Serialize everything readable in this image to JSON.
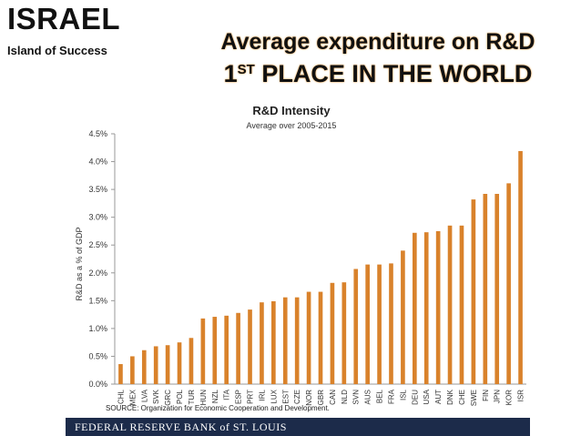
{
  "brand": {
    "title": "ISRAEL",
    "subtitle": "Island of Success"
  },
  "headline": {
    "line1": "Average expenditure on R&D",
    "line2_prefix": "1",
    "line2_sup": "ST",
    "line2_rest": " PLACE IN THE WORLD"
  },
  "chart_data": {
    "type": "bar",
    "title": "R&D Intensity",
    "subtitle": "Average over 2005-2015",
    "ylabel": "R&D as a % of GDP",
    "xlabel": "",
    "ylim": [
      0,
      4.5
    ],
    "yticks": [
      0,
      0.5,
      1.0,
      1.5,
      2.0,
      2.5,
      3.0,
      3.5,
      4.0,
      4.5
    ],
    "ytick_labels": [
      "0.0%",
      "0.5%",
      "1.0%",
      "1.5%",
      "2.0%",
      "2.5%",
      "3.0%",
      "3.5%",
      "4.0%",
      "4.5%"
    ],
    "grid": false,
    "bar_color": "#d9822b",
    "categories": [
      "CHL",
      "MEX",
      "LVA",
      "SVK",
      "GRC",
      "POL",
      "TUR",
      "HUN",
      "NZL",
      "ITA",
      "ESP",
      "PRT",
      "IRL",
      "LUX",
      "EST",
      "CZE",
      "NOR",
      "GBR",
      "CAN",
      "NLD",
      "SVN",
      "AUS",
      "BEL",
      "FRA",
      "ISL",
      "DEU",
      "USA",
      "AUT",
      "DNK",
      "CHE",
      "SWE",
      "FIN",
      "JPN",
      "KOR",
      "ISR"
    ],
    "values": [
      0.36,
      0.5,
      0.61,
      0.68,
      0.7,
      0.75,
      0.83,
      1.18,
      1.21,
      1.23,
      1.28,
      1.34,
      1.47,
      1.49,
      1.56,
      1.56,
      1.66,
      1.66,
      1.82,
      1.83,
      2.07,
      2.15,
      2.15,
      2.17,
      2.4,
      2.72,
      2.73,
      2.75,
      2.85,
      2.85,
      3.32,
      3.42,
      3.42,
      3.61,
      4.19
    ],
    "source": "SOURCE: Organization for Economic Cooperation and Development."
  },
  "footer": {
    "text": "FEDERAL RESERVE BANK of ST. LOUIS"
  }
}
